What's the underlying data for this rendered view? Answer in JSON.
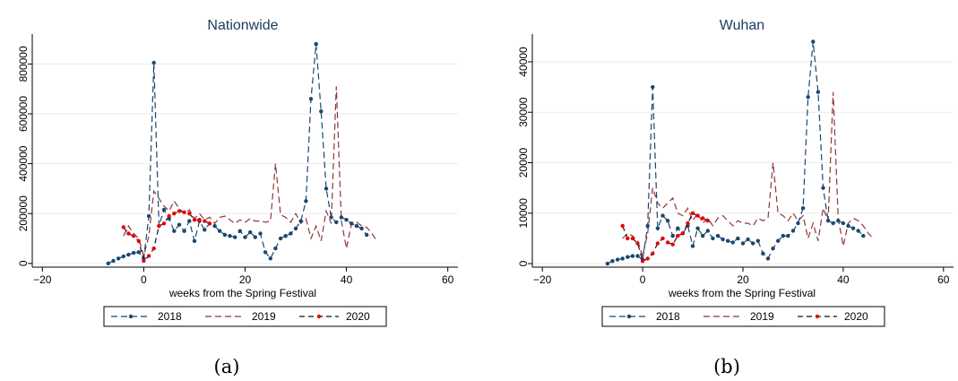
{
  "figure": {
    "series_names": [
      "2018",
      "2019",
      "2020"
    ],
    "colors": {
      "s2018": "#1a476f",
      "s2019": "#90353b",
      "s2020": "#111111",
      "marker2020": "#e8000b",
      "grid": "#eaeaea"
    }
  },
  "chart_data": [
    {
      "type": "line",
      "title": "Nationwide",
      "caption": "(a)",
      "xlabel": "weeks from the Spring Festival",
      "ylabel": "",
      "xlim": [
        -22,
        62
      ],
      "ylim": [
        -15000,
        920000
      ],
      "xticks": [
        -20,
        0,
        20,
        40,
        60
      ],
      "xtick_labels": [
        "−20",
        "0",
        "20",
        "40",
        "60"
      ],
      "yticks": [
        0,
        200000,
        400000,
        600000,
        800000
      ],
      "ytick_labels": [
        "0",
        "200000",
        "400000",
        "600000",
        "800000"
      ],
      "series": [
        {
          "name": "2018",
          "markers": true,
          "points": [
            [
              -7,
              0
            ],
            [
              -6,
              10000
            ],
            [
              -5,
              20000
            ],
            [
              -4,
              28000
            ],
            [
              -3,
              35000
            ],
            [
              -2,
              42000
            ],
            [
              -1,
              45000
            ],
            [
              0,
              20000
            ],
            [
              1,
              190000
            ],
            [
              2,
              805000
            ],
            [
              3,
              150000
            ],
            [
              4,
              215000
            ],
            [
              5,
              180000
            ],
            [
              6,
              130000
            ],
            [
              7,
              155000
            ],
            [
              8,
              130000
            ],
            [
              9,
              170000
            ],
            [
              10,
              90000
            ],
            [
              11,
              170000
            ],
            [
              12,
              135000
            ],
            [
              13,
              160000
            ],
            [
              14,
              150000
            ],
            [
              15,
              130000
            ],
            [
              16,
              115000
            ],
            [
              17,
              110000
            ],
            [
              18,
              105000
            ],
            [
              19,
              130000
            ],
            [
              20,
              105000
            ],
            [
              21,
              125000
            ],
            [
              22,
              105000
            ],
            [
              23,
              120000
            ],
            [
              24,
              45000
            ],
            [
              25,
              20000
            ],
            [
              26,
              60000
            ],
            [
              27,
              100000
            ],
            [
              28,
              110000
            ],
            [
              29,
              120000
            ],
            [
              30,
              140000
            ],
            [
              31,
              170000
            ],
            [
              32,
              250000
            ],
            [
              33,
              660000
            ],
            [
              34,
              880000
            ],
            [
              35,
              610000
            ],
            [
              36,
              300000
            ],
            [
              37,
              185000
            ],
            [
              38,
              165000
            ],
            [
              39,
              185000
            ],
            [
              40,
              175000
            ],
            [
              41,
              160000
            ],
            [
              42,
              150000
            ],
            [
              43,
              140000
            ],
            [
              44,
              115000
            ]
          ]
        },
        {
          "name": "2019",
          "markers": false,
          "points": [
            [
              -4,
              110000
            ],
            [
              -3,
              150000
            ],
            [
              -2,
              120000
            ],
            [
              -1,
              100000
            ],
            [
              0,
              30000
            ],
            [
              1,
              110000
            ],
            [
              2,
              290000
            ],
            [
              3,
              260000
            ],
            [
              4,
              230000
            ],
            [
              5,
              210000
            ],
            [
              6,
              250000
            ],
            [
              7,
              220000
            ],
            [
              8,
              200000
            ],
            [
              9,
              215000
            ],
            [
              10,
              180000
            ],
            [
              11,
              200000
            ],
            [
              12,
              175000
            ],
            [
              13,
              185000
            ],
            [
              14,
              160000
            ],
            [
              15,
              185000
            ],
            [
              16,
              190000
            ],
            [
              17,
              175000
            ],
            [
              18,
              160000
            ],
            [
              19,
              175000
            ],
            [
              20,
              165000
            ],
            [
              21,
              180000
            ],
            [
              22,
              170000
            ],
            [
              23,
              170000
            ],
            [
              24,
              165000
            ],
            [
              25,
              170000
            ],
            [
              26,
              400000
            ],
            [
              27,
              195000
            ],
            [
              28,
              185000
            ],
            [
              29,
              165000
            ],
            [
              30,
              200000
            ],
            [
              31,
              160000
            ],
            [
              32,
              180000
            ],
            [
              33,
              100000
            ],
            [
              34,
              150000
            ],
            [
              35,
              90000
            ],
            [
              36,
              210000
            ],
            [
              37,
              160000
            ],
            [
              38,
              710000
            ],
            [
              39,
              170000
            ],
            [
              40,
              60000
            ],
            [
              41,
              160000
            ],
            [
              42,
              165000
            ],
            [
              43,
              150000
            ],
            [
              44,
              145000
            ],
            [
              45,
              120000
            ],
            [
              46,
              90000
            ]
          ]
        },
        {
          "name": "2020",
          "markers": true,
          "points": [
            [
              -4,
              145000
            ],
            [
              -3,
              120000
            ],
            [
              -2,
              110000
            ],
            [
              -1,
              90000
            ],
            [
              0,
              10000
            ],
            [
              1,
              30000
            ],
            [
              2,
              60000
            ],
            [
              3,
              150000
            ],
            [
              4,
              160000
            ],
            [
              5,
              190000
            ],
            [
              6,
              200000
            ],
            [
              7,
              210000
            ],
            [
              8,
              205000
            ],
            [
              9,
              200000
            ],
            [
              10,
              175000
            ],
            [
              11,
              175000
            ],
            [
              12,
              170000
            ],
            [
              13,
              160000
            ]
          ]
        }
      ]
    },
    {
      "type": "line",
      "title": "Wuhan",
      "caption": "(b)",
      "xlabel": "weeks from the Spring Festival",
      "ylabel": "",
      "xlim": [
        -22,
        62
      ],
      "ylim": [
        -700,
        45500
      ],
      "xticks": [
        -20,
        0,
        20,
        40,
        60
      ],
      "xtick_labels": [
        "−20",
        "0",
        "20",
        "40",
        "60"
      ],
      "yticks": [
        0,
        10000,
        20000,
        30000,
        40000
      ],
      "ytick_labels": [
        "0",
        "10000",
        "20000",
        "30000",
        "40000"
      ],
      "series": [
        {
          "name": "2018",
          "markers": true,
          "points": [
            [
              -7,
              0
            ],
            [
              -6,
              500
            ],
            [
              -5,
              800
            ],
            [
              -4,
              1000
            ],
            [
              -3,
              1300
            ],
            [
              -2,
              1500
            ],
            [
              -1,
              1500
            ],
            [
              0,
              800
            ],
            [
              1,
              7500
            ],
            [
              2,
              35000
            ],
            [
              3,
              7000
            ],
            [
              4,
              9500
            ],
            [
              5,
              8500
            ],
            [
              6,
              5500
            ],
            [
              7,
              7000
            ],
            [
              8,
              6000
            ],
            [
              9,
              7500
            ],
            [
              10,
              3500
            ],
            [
              11,
              7000
            ],
            [
              12,
              5500
            ],
            [
              13,
              6500
            ],
            [
              14,
              5000
            ],
            [
              15,
              5500
            ],
            [
              16,
              4800
            ],
            [
              17,
              4500
            ],
            [
              18,
              4200
            ],
            [
              19,
              5000
            ],
            [
              20,
              4000
            ],
            [
              21,
              4800
            ],
            [
              22,
              4000
            ],
            [
              23,
              4500
            ],
            [
              24,
              2000
            ],
            [
              25,
              1000
            ],
            [
              26,
              3000
            ],
            [
              27,
              4500
            ],
            [
              28,
              5500
            ],
            [
              29,
              5500
            ],
            [
              30,
              6500
            ],
            [
              31,
              8000
            ],
            [
              32,
              11000
            ],
            [
              33,
              33000
            ],
            [
              34,
              44000
            ],
            [
              35,
              34000
            ],
            [
              36,
              15000
            ],
            [
              37,
              8500
            ],
            [
              38,
              8000
            ],
            [
              39,
              8500
            ],
            [
              40,
              8000
            ],
            [
              41,
              7500
            ],
            [
              42,
              7000
            ],
            [
              43,
              6500
            ],
            [
              44,
              5500
            ]
          ]
        },
        {
          "name": "2019",
          "markers": false,
          "points": [
            [
              -4,
              5000
            ],
            [
              -3,
              6000
            ],
            [
              -2,
              5500
            ],
            [
              -1,
              4500
            ],
            [
              0,
              1500
            ],
            [
              1,
              6000
            ],
            [
              2,
              15000
            ],
            [
              3,
              12000
            ],
            [
              4,
              11000
            ],
            [
              5,
              12000
            ],
            [
              6,
              13000
            ],
            [
              7,
              10000
            ],
            [
              8,
              9500
            ],
            [
              9,
              11000
            ],
            [
              10,
              8500
            ],
            [
              11,
              10000
            ],
            [
              12,
              8000
            ],
            [
              13,
              9000
            ],
            [
              14,
              7500
            ],
            [
              15,
              9000
            ],
            [
              16,
              9500
            ],
            [
              17,
              8500
            ],
            [
              18,
              7500
            ],
            [
              19,
              8500
            ],
            [
              20,
              8000
            ],
            [
              21,
              8000
            ],
            [
              22,
              7500
            ],
            [
              23,
              9000
            ],
            [
              24,
              8500
            ],
            [
              25,
              9000
            ],
            [
              26,
              20000
            ],
            [
              27,
              10000
            ],
            [
              28,
              9500
            ],
            [
              29,
              8500
            ],
            [
              30,
              10000
            ],
            [
              31,
              8500
            ],
            [
              32,
              9500
            ],
            [
              33,
              5000
            ],
            [
              34,
              8000
            ],
            [
              35,
              4500
            ],
            [
              36,
              11000
            ],
            [
              37,
              8500
            ],
            [
              38,
              34000
            ],
            [
              39,
              9000
            ],
            [
              40,
              3500
            ],
            [
              41,
              8000
            ],
            [
              42,
              9000
            ],
            [
              43,
              8500
            ],
            [
              44,
              7500
            ],
            [
              45,
              6000
            ],
            [
              46,
              5000
            ]
          ]
        },
        {
          "name": "2020",
          "markers": true,
          "points": [
            [
              -4,
              7500
            ],
            [
              -3,
              5000
            ],
            [
              -2,
              5000
            ],
            [
              -1,
              4000
            ],
            [
              0,
              500
            ],
            [
              1,
              1000
            ],
            [
              2,
              2000
            ],
            [
              3,
              4000
            ],
            [
              4,
              5000
            ],
            [
              5,
              4200
            ],
            [
              6,
              3800
            ],
            [
              7,
              5500
            ],
            [
              8,
              6000
            ],
            [
              9,
              8000
            ],
            [
              10,
              10000
            ],
            [
              11,
              9500
            ],
            [
              12,
              9000
            ],
            [
              13,
              8500
            ]
          ]
        }
      ]
    }
  ]
}
